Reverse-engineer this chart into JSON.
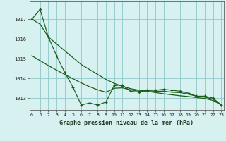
{
  "x": [
    0,
    1,
    2,
    3,
    4,
    5,
    6,
    7,
    8,
    9,
    10,
    11,
    12,
    13,
    14,
    15,
    16,
    17,
    18,
    19,
    20,
    21,
    22,
    23
  ],
  "line_jagged": [
    1017.0,
    1017.5,
    1016.1,
    1015.15,
    1014.3,
    1013.55,
    1012.65,
    1012.75,
    1012.65,
    1012.8,
    1013.65,
    1013.65,
    1013.35,
    1013.3,
    1013.4,
    1013.4,
    1013.45,
    1013.4,
    1013.35,
    1013.25,
    1013.1,
    1013.1,
    1013.0,
    1012.65
  ],
  "line_smooth_upper": [
    1017.0,
    1016.75,
    1016.1,
    1015.75,
    1015.4,
    1015.05,
    1014.7,
    1014.45,
    1014.2,
    1013.95,
    1013.75,
    1013.6,
    1013.48,
    1013.4,
    1013.35,
    1013.28,
    1013.22,
    1013.17,
    1013.12,
    1013.08,
    1013.03,
    1012.98,
    1012.88,
    1012.65
  ],
  "line_smooth_lower": [
    1015.15,
    1014.9,
    1014.65,
    1014.42,
    1014.2,
    1013.98,
    1013.77,
    1013.58,
    1013.42,
    1013.3,
    1013.5,
    1013.52,
    1013.42,
    1013.35,
    1013.38,
    1013.35,
    1013.35,
    1013.3,
    1013.28,
    1013.2,
    1013.1,
    1013.05,
    1012.95,
    1012.65
  ],
  "background": "#d7f0f0",
  "grid_color": "#99cccc",
  "line_color": "#1a5c1a",
  "xlabel": "Graphe pression niveau de la mer (hPa)",
  "ylim": [
    1012.4,
    1017.9
  ],
  "yticks": [
    1013,
    1014,
    1015,
    1016,
    1017
  ],
  "xlim": [
    -0.3,
    23.3
  ],
  "xtick_labels": [
    "0",
    "1",
    "2",
    "3",
    "4",
    "5",
    "6",
    "7",
    "8",
    "9",
    "10",
    "11",
    "12",
    "13",
    "14",
    "15",
    "16",
    "17",
    "18",
    "19",
    "20",
    "21",
    "22",
    "23"
  ]
}
